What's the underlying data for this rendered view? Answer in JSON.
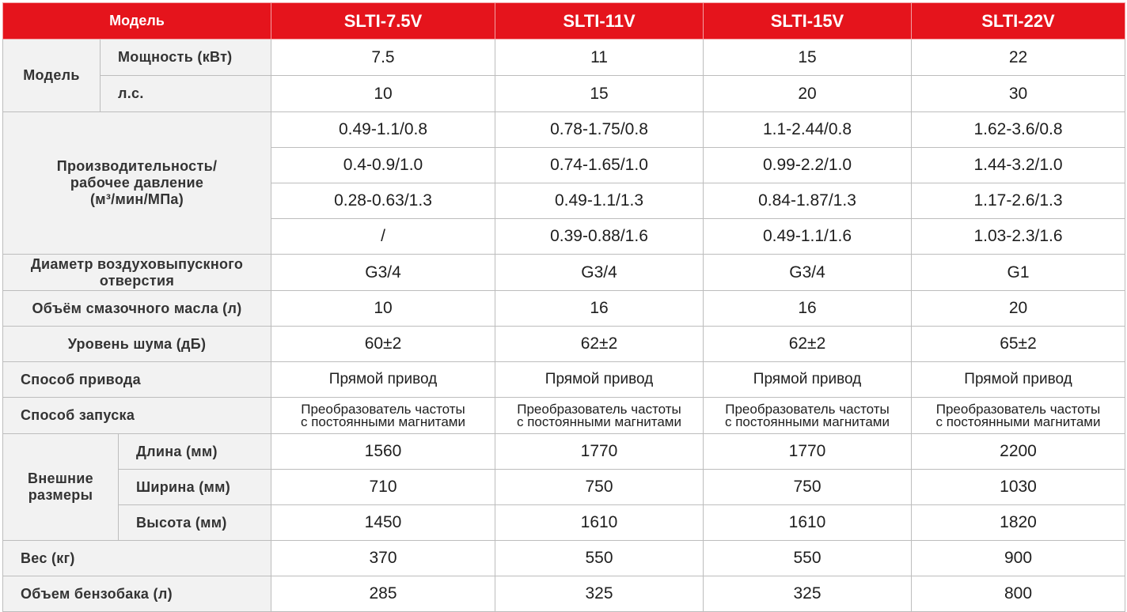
{
  "header": {
    "model_label": "Модель",
    "models": [
      "SLTI-7.5V",
      "SLTI-11V",
      "SLTI-15V",
      "SLTI-22V"
    ]
  },
  "model_group": {
    "label": "Модель",
    "power": {
      "label": "Мощность (кВт)",
      "values": [
        "7.5",
        "11",
        "15",
        "22"
      ]
    },
    "hp": {
      "label": "л.с.",
      "values": [
        "10",
        "15",
        "20",
        "30"
      ]
    }
  },
  "capacity": {
    "label_line1": "Производительность/",
    "label_line2": "рабочее давление",
    "label_line3": "(м³/мин/МПа)",
    "rows": [
      [
        "0.49-1.1/0.8",
        "0.78-1.75/0.8",
        "1.1-2.44/0.8",
        "1.62-3.6/0.8"
      ],
      [
        "0.4-0.9/1.0",
        "0.74-1.65/1.0",
        "0.99-2.2/1.0",
        "1.44-3.2/1.0"
      ],
      [
        "0.28-0.63/1.3",
        "0.49-1.1/1.3",
        "0.84-1.87/1.3",
        "1.17-2.6/1.3"
      ],
      [
        "/",
        "0.39-0.88/1.6",
        "0.49-1.1/1.6",
        "1.03-2.3/1.6"
      ]
    ]
  },
  "outlet": {
    "label_line1": "Диаметр воздуховыпускного",
    "label_line2": "отверстия",
    "values": [
      "G3/4",
      "G3/4",
      "G3/4",
      "G1"
    ]
  },
  "oil": {
    "label": "Объём смазочного масла (л)",
    "values": [
      "10",
      "16",
      "16",
      "20"
    ]
  },
  "noise": {
    "label": "Уровень шума (дБ)",
    "values": [
      "60±2",
      "62±2",
      "62±2",
      "65±2"
    ]
  },
  "drive": {
    "label": "Способ привода",
    "values": [
      "Прямой привод",
      "Прямой привод",
      "Прямой привод",
      "Прямой привод"
    ]
  },
  "start": {
    "label": "Способ запуска",
    "line1": "Преобразователь частоты",
    "line2": "с постоянными магнитами"
  },
  "dimensions": {
    "label_line1": "Внешние",
    "label_line2": "размеры",
    "length": {
      "label": "Длина (мм)",
      "values": [
        "1560",
        "1770",
        "1770",
        "2200"
      ]
    },
    "width": {
      "label": "Ширина (мм)",
      "values": [
        "710",
        "750",
        "750",
        "1030"
      ]
    },
    "height": {
      "label": "Высота (мм)",
      "values": [
        "1450",
        "1610",
        "1610",
        "1820"
      ]
    }
  },
  "weight": {
    "label": "Вес (кг)",
    "values": [
      "370",
      "550",
      "550",
      "900"
    ]
  },
  "tank": {
    "label": "Объем бензобака (л)",
    "values": [
      "285",
      "325",
      "325",
      "800"
    ]
  },
  "colors": {
    "header_bg": "#e5141c",
    "header_text": "#ffffff",
    "label_bg": "#f2f2f2"
  }
}
